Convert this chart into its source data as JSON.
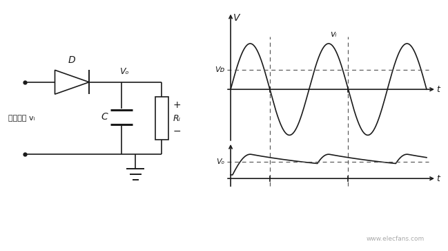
{
  "bg_color": "#ffffff",
  "circuit": {
    "source_label": "交流电源 vᵢ",
    "diode_label": "D",
    "cap_label": "C",
    "res_label": "Rₗ",
    "vo_label": "Vₒ"
  },
  "graph": {
    "vd_label": "Vᴅ",
    "vo_label": "Vₒ",
    "vi_label": "vᵢ",
    "t_label": "t",
    "V_label": "V"
  },
  "line_color": "#1a1a1a",
  "dashed_color": "#555555",
  "font_size": 9
}
